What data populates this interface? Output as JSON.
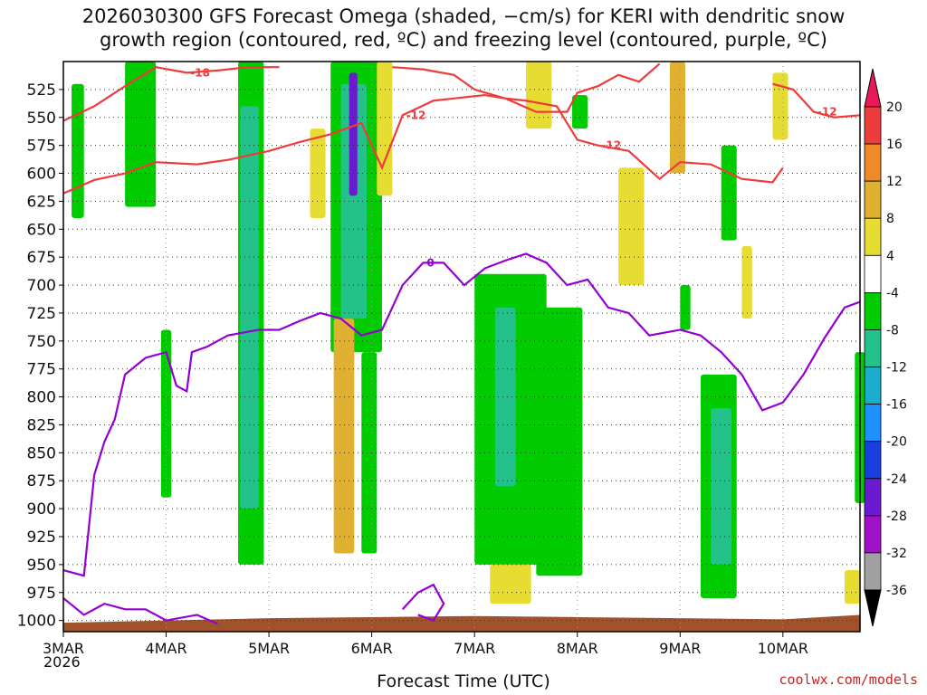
{
  "chart_data": {
    "type": "heatmap",
    "title_line1": "2026030300 GFS Forecast Omega (shaded, −cm/s) for KERI with dendritic snow",
    "title_line2": "growth region (contoured, red, ºC) and freezing level (contoured, purple, ºC)",
    "xlabel": "Forecast Time (UTC)",
    "year_label": "2026",
    "credit": "coolwx.com/models",
    "x_ticks": [
      "3MAR",
      "4MAR",
      "5MAR",
      "6MAR",
      "7MAR",
      "8MAR",
      "9MAR",
      "10MAR"
    ],
    "x_range_days": [
      0,
      7.75
    ],
    "y_ticks": [
      525,
      550,
      575,
      600,
      625,
      650,
      675,
      700,
      725,
      750,
      775,
      800,
      825,
      850,
      875,
      900,
      925,
      950,
      975,
      1000
    ],
    "y_range_hpa": [
      500,
      1010
    ],
    "grid": "dotted",
    "colorbar": {
      "levels": [
        20,
        16,
        12,
        8,
        4,
        -4,
        -8,
        -12,
        -16,
        -20,
        -24,
        -28,
        -32,
        -36
      ],
      "colors": [
        "#e8185a",
        "#ee3b3b",
        "#ee8a2a",
        "#e0b030",
        "#e6dc32",
        "#ffffff",
        "#00cc00",
        "#22c28a",
        "#1aaecc",
        "#1e90ff",
        "#1a3ee0",
        "#6a1ad0",
        "#a010c8",
        "#a0a0a0",
        "#000000"
      ]
    },
    "omega_regions": [
      {
        "color": "#00cc00",
        "x": [
          0.08,
          0.2
        ],
        "p": [
          520,
          640
        ]
      },
      {
        "color": "#00cc00",
        "x": [
          0.6,
          0.9
        ],
        "p": [
          500,
          630
        ]
      },
      {
        "color": "#00cc00",
        "x": [
          0.95,
          1.05
        ],
        "p": [
          740,
          890
        ]
      },
      {
        "color": "#00cc00",
        "x": [
          1.7,
          1.95
        ],
        "p": [
          500,
          950
        ]
      },
      {
        "color": "#22c28a",
        "x": [
          1.72,
          1.9
        ],
        "p": [
          540,
          900
        ]
      },
      {
        "color": "#00cc00",
        "x": [
          2.6,
          3.1
        ],
        "p": [
          500,
          760
        ]
      },
      {
        "color": "#22c28a",
        "x": [
          2.7,
          2.95
        ],
        "p": [
          520,
          730
        ]
      },
      {
        "color": "#6a1ad0",
        "x": [
          2.78,
          2.86
        ],
        "p": [
          510,
          620
        ]
      },
      {
        "color": "#e6dc32",
        "x": [
          3.05,
          3.2
        ],
        "p": [
          500,
          620
        ]
      },
      {
        "color": "#e6dc32",
        "x": [
          2.4,
          2.55
        ],
        "p": [
          560,
          640
        ]
      },
      {
        "color": "#00cc00",
        "x": [
          2.9,
          3.05
        ],
        "p": [
          760,
          940
        ]
      },
      {
        "color": "#ee3b3b",
        "x": [
          2.68,
          2.76
        ],
        "p": [
          730,
          930
        ]
      },
      {
        "color": "#e0b030",
        "x": [
          2.63,
          2.83
        ],
        "p": [
          730,
          940
        ]
      },
      {
        "color": "#00cc00",
        "x": [
          4.0,
          4.7
        ],
        "p": [
          690,
          950
        ]
      },
      {
        "color": "#22c28a",
        "x": [
          4.2,
          4.4
        ],
        "p": [
          720,
          880
        ]
      },
      {
        "color": "#e6dc32",
        "x": [
          4.15,
          4.55
        ],
        "p": [
          950,
          985
        ]
      },
      {
        "color": "#00cc00",
        "x": [
          4.6,
          5.05
        ],
        "p": [
          720,
          960
        ]
      },
      {
        "color": "#e6dc32",
        "x": [
          4.5,
          4.75
        ],
        "p": [
          500,
          560
        ]
      },
      {
        "color": "#00cc00",
        "x": [
          4.95,
          5.1
        ],
        "p": [
          530,
          560
        ]
      },
      {
        "color": "#e6dc32",
        "x": [
          5.4,
          5.65
        ],
        "p": [
          595,
          700
        ]
      },
      {
        "color": "#e0b030",
        "x": [
          5.9,
          6.05
        ],
        "p": [
          500,
          600
        ]
      },
      {
        "color": "#00cc00",
        "x": [
          6.0,
          6.1
        ],
        "p": [
          700,
          740
        ]
      },
      {
        "color": "#00cc00",
        "x": [
          6.2,
          6.55
        ],
        "p": [
          780,
          980
        ]
      },
      {
        "color": "#22c28a",
        "x": [
          6.3,
          6.5
        ],
        "p": [
          810,
          950
        ]
      },
      {
        "color": "#00cc00",
        "x": [
          6.4,
          6.55
        ],
        "p": [
          575,
          660
        ]
      },
      {
        "color": "#e6dc32",
        "x": [
          6.6,
          6.7
        ],
        "p": [
          665,
          730
        ]
      },
      {
        "color": "#e6dc32",
        "x": [
          6.9,
          7.05
        ],
        "p": [
          510,
          570
        ]
      },
      {
        "color": "#00cc00",
        "x": [
          7.7,
          7.8
        ],
        "p": [
          760,
          895
        ]
      },
      {
        "color": "#e6dc32",
        "x": [
          7.6,
          7.75
        ],
        "p": [
          955,
          985
        ]
      }
    ],
    "dgz_isotherms": [
      {
        "label": "-18",
        "points": [
          [
            0,
            553
          ],
          [
            0.3,
            540
          ],
          [
            0.6,
            522
          ],
          [
            0.9,
            505
          ],
          [
            1.2,
            510
          ],
          [
            1.5,
            508
          ],
          [
            1.8,
            505
          ],
          [
            2.1,
            505
          ]
        ]
      },
      {
        "label": "-12",
        "points": [
          [
            0,
            618
          ],
          [
            0.3,
            606
          ],
          [
            0.6,
            600
          ],
          [
            0.9,
            590
          ],
          [
            1.3,
            592
          ],
          [
            1.6,
            588
          ],
          [
            2.0,
            580
          ],
          [
            2.3,
            572
          ],
          [
            2.6,
            565
          ],
          [
            2.9,
            555
          ],
          [
            3.1,
            595
          ],
          [
            3.3,
            548
          ],
          [
            3.6,
            535
          ],
          [
            3.9,
            532
          ],
          [
            4.1,
            530
          ],
          [
            4.3,
            533
          ],
          [
            4.6,
            545
          ],
          [
            4.9,
            545
          ],
          [
            5.0,
            528
          ],
          [
            5.2,
            522
          ],
          [
            5.4,
            512
          ],
          [
            5.6,
            518
          ],
          [
            5.8,
            502
          ]
        ]
      },
      {
        "label": "-12",
        "points": [
          [
            3.2,
            505
          ],
          [
            3.5,
            507
          ],
          [
            3.8,
            512
          ],
          [
            4.0,
            525
          ],
          [
            4.3,
            533
          ],
          [
            4.5,
            535
          ],
          [
            4.8,
            540
          ],
          [
            5.0,
            570
          ],
          [
            5.2,
            575
          ],
          [
            5.5,
            580
          ],
          [
            5.8,
            605
          ],
          [
            6.0,
            590
          ],
          [
            6.3,
            592
          ],
          [
            6.6,
            605
          ],
          [
            6.9,
            608
          ],
          [
            7.0,
            595
          ]
        ]
      },
      {
        "label": "-12",
        "points": [
          [
            6.9,
            520
          ],
          [
            7.1,
            525
          ],
          [
            7.3,
            545
          ],
          [
            7.5,
            550
          ],
          [
            7.75,
            548
          ]
        ]
      }
    ],
    "freezing_level": [
      {
        "label": "0",
        "points": [
          [
            0,
            955
          ],
          [
            0.2,
            960
          ],
          [
            0.3,
            870
          ],
          [
            0.4,
            840
          ],
          [
            0.5,
            820
          ],
          [
            0.6,
            780
          ],
          [
            0.8,
            765
          ],
          [
            1.0,
            760
          ],
          [
            1.1,
            790
          ],
          [
            1.2,
            795
          ],
          [
            1.25,
            760
          ],
          [
            1.4,
            755
          ],
          [
            1.6,
            745
          ],
          [
            1.9,
            740
          ],
          [
            2.1,
            740
          ],
          [
            2.3,
            732
          ],
          [
            2.5,
            725
          ],
          [
            2.7,
            730
          ],
          [
            2.9,
            745
          ],
          [
            3.1,
            740
          ],
          [
            3.3,
            700
          ],
          [
            3.5,
            680
          ],
          [
            3.7,
            680
          ],
          [
            3.9,
            700
          ],
          [
            4.1,
            685
          ],
          [
            4.3,
            678
          ],
          [
            4.5,
            672
          ],
          [
            4.7,
            680
          ],
          [
            4.9,
            700
          ],
          [
            5.1,
            695
          ],
          [
            5.3,
            720
          ],
          [
            5.5,
            725
          ],
          [
            5.7,
            745
          ],
          [
            6.0,
            740
          ],
          [
            6.2,
            745
          ],
          [
            6.4,
            760
          ],
          [
            6.6,
            780
          ],
          [
            6.8,
            812
          ],
          [
            7.0,
            805
          ],
          [
            7.2,
            780
          ],
          [
            7.4,
            748
          ],
          [
            7.6,
            720
          ],
          [
            7.75,
            715
          ]
        ]
      },
      {
        "label": "",
        "points": [
          [
            0,
            980
          ],
          [
            0.2,
            995
          ],
          [
            0.4,
            985
          ],
          [
            0.6,
            990
          ],
          [
            0.8,
            990
          ],
          [
            1.0,
            1000
          ],
          [
            1.3,
            995
          ],
          [
            1.5,
            1003
          ]
        ]
      },
      {
        "label": "",
        "points": [
          [
            3.3,
            990
          ],
          [
            3.45,
            975
          ],
          [
            3.6,
            968
          ],
          [
            3.7,
            985
          ],
          [
            3.6,
            1000
          ],
          [
            3.45,
            995
          ]
        ]
      }
    ],
    "terrain_top_hpa": [
      [
        0,
        1002
      ],
      [
        1,
        1000
      ],
      [
        2,
        998
      ],
      [
        3,
        997
      ],
      [
        4,
        996
      ],
      [
        5,
        997
      ],
      [
        6,
        998
      ],
      [
        7,
        999
      ],
      [
        7.75,
        995
      ]
    ]
  }
}
